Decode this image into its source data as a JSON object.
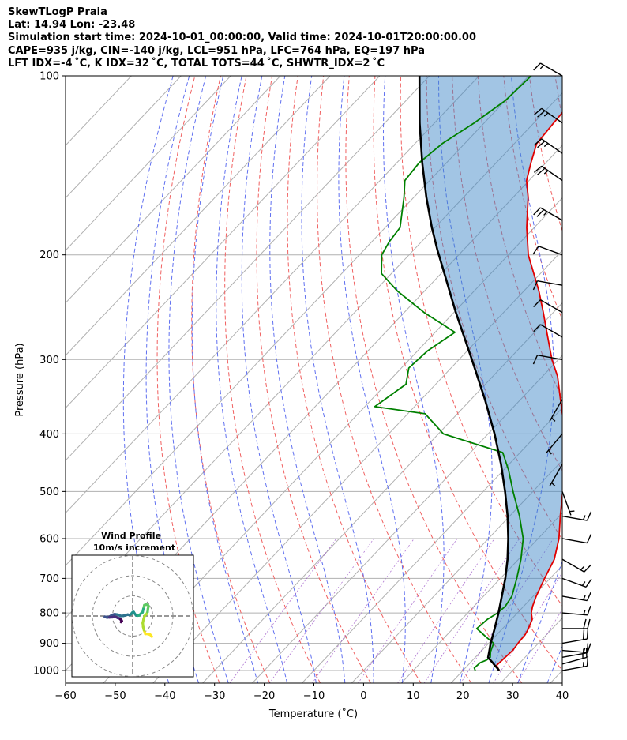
{
  "header": {
    "line1": "SkewTLogP Praia",
    "line2": "Lat: 14.94   Lon: -23.48",
    "line3": "Simulation start time: 2024-10-01_00:00:00, Valid time: 2024-10-01T20:00:00.00",
    "line4": "CAPE=935 j/kg, CIN=-140 j/kg, LCL=951 hPa, LFC=764 hPa, EQ=197 hPa",
    "line5": "LFT IDX=-4 ˚C, K IDX=32 ˚C, TOTAL TOTS=44 ˚C, SHWTR_IDX=2 ˚C"
  },
  "chart_data": {
    "type": "skewt",
    "title": "SkewTLogP Praia",
    "xlabel": "Temperature (˚C)",
    "ylabel": "Pressure (hPa)",
    "xlim": [
      -60,
      40
    ],
    "ylim": [
      1050,
      100
    ],
    "x_ticks": [
      -60,
      -50,
      -40,
      -30,
      -20,
      -10,
      0,
      10,
      20,
      30,
      40
    ],
    "x_tick_labels": [
      "−60",
      "−50",
      "−40",
      "−30",
      "−20",
      "−10",
      "0",
      "10",
      "20",
      "30",
      "40"
    ],
    "p_ticks": [
      1000,
      900,
      800,
      700,
      600,
      500,
      400,
      300,
      200,
      100
    ],
    "p_tick_labels": [
      "1000",
      "900",
      "800",
      "700",
      "600",
      "500",
      "400",
      "300",
      "200",
      "100"
    ],
    "series": [
      {
        "name": "temperature",
        "color": "#e00000",
        "points": [
          [
            1000,
            27.3
          ],
          [
            980,
            25.8
          ],
          [
            950,
            26.0
          ],
          [
            925,
            26.2
          ],
          [
            900,
            25.9
          ],
          [
            870,
            25.7
          ],
          [
            850,
            25.2
          ],
          [
            820,
            24.2
          ],
          [
            800,
            22.8
          ],
          [
            780,
            21.8
          ],
          [
            750,
            20.6
          ],
          [
            700,
            18.9
          ],
          [
            650,
            17.2
          ],
          [
            600,
            14.2
          ],
          [
            550,
            10.2
          ],
          [
            500,
            6.0
          ],
          [
            450,
            1.5
          ],
          [
            400,
            -4.5
          ],
          [
            350,
            -12.0
          ],
          [
            320,
            -17.0
          ],
          [
            300,
            -21.3
          ],
          [
            270,
            -27.5
          ],
          [
            250,
            -32.0
          ],
          [
            230,
            -37.0
          ],
          [
            200,
            -46.0
          ],
          [
            180,
            -51.5
          ],
          [
            160,
            -57.0
          ],
          [
            150,
            -60.5
          ],
          [
            140,
            -63.0
          ],
          [
            130,
            -65.5
          ],
          [
            120,
            -66.0
          ],
          [
            110,
            -66.5
          ],
          [
            100,
            -68.0
          ]
        ]
      },
      {
        "name": "dewpoint",
        "color": "#008000",
        "points": [
          [
            1000,
            22.5
          ],
          [
            990,
            21.8
          ],
          [
            970,
            22.0
          ],
          [
            960,
            22.8
          ],
          [
            950,
            23.0
          ],
          [
            930,
            22.0
          ],
          [
            900,
            21.0
          ],
          [
            880,
            18.5
          ],
          [
            850,
            14.8
          ],
          [
            820,
            15.2
          ],
          [
            800,
            16.0
          ],
          [
            780,
            16.3
          ],
          [
            750,
            15.7
          ],
          [
            700,
            13.3
          ],
          [
            650,
            10.5
          ],
          [
            600,
            7.0
          ],
          [
            550,
            2.0
          ],
          [
            500,
            -4.0
          ],
          [
            460,
            -9.0
          ],
          [
            430,
            -13.5
          ],
          [
            400,
            -29.0
          ],
          [
            370,
            -36.5
          ],
          [
            360,
            -48.0
          ],
          [
            330,
            -46.0
          ],
          [
            310,
            -48.5
          ],
          [
            290,
            -48.0
          ],
          [
            270,
            -46.0
          ],
          [
            250,
            -56.0
          ],
          [
            230,
            -65.5
          ],
          [
            215,
            -72.0
          ],
          [
            200,
            -75.5
          ],
          [
            190,
            -76.5
          ],
          [
            180,
            -77.0
          ],
          [
            160,
            -82.0
          ],
          [
            150,
            -85.0
          ],
          [
            140,
            -85.5
          ],
          [
            130,
            -84.5
          ],
          [
            120,
            -82.0
          ],
          [
            110,
            -80.0
          ],
          [
            100,
            -79.5
          ]
        ]
      },
      {
        "name": "parcel",
        "color": "#000000",
        "points": [
          [
            1000,
            27.3
          ],
          [
            990,
            26.4
          ],
          [
            980,
            25.4
          ],
          [
            970,
            24.5
          ],
          [
            951,
            22.6
          ],
          [
            925,
            21.5
          ],
          [
            900,
            20.4
          ],
          [
            850,
            18.4
          ],
          [
            800,
            16.2
          ],
          [
            764,
            14.4
          ],
          [
            700,
            11.0
          ],
          [
            650,
            7.8
          ],
          [
            600,
            4.0
          ],
          [
            550,
            -0.4
          ],
          [
            500,
            -5.6
          ],
          [
            450,
            -11.6
          ],
          [
            400,
            -18.7
          ],
          [
            350,
            -27.2
          ],
          [
            300,
            -37.4
          ],
          [
            250,
            -49.6
          ],
          [
            200,
            -64.0
          ],
          [
            197,
            -65.0
          ],
          [
            180,
            -70.6
          ],
          [
            160,
            -77.5
          ],
          [
            140,
            -84.9
          ],
          [
            120,
            -93.0
          ],
          [
            100,
            -102.0
          ]
        ]
      }
    ],
    "wind_barbs": [
      {
        "p": 1000,
        "speed_kt": 15,
        "dir_deg": 80
      },
      {
        "p": 975,
        "speed_kt": 15,
        "dir_deg": 75
      },
      {
        "p": 950,
        "speed_kt": 15,
        "dir_deg": 80
      },
      {
        "p": 925,
        "speed_kt": 15,
        "dir_deg": 95
      },
      {
        "p": 900,
        "speed_kt": 20,
        "dir_deg": 80
      },
      {
        "p": 850,
        "speed_kt": 20,
        "dir_deg": 90
      },
      {
        "p": 800,
        "speed_kt": 15,
        "dir_deg": 95
      },
      {
        "p": 750,
        "speed_kt": 15,
        "dir_deg": 100
      },
      {
        "p": 700,
        "speed_kt": 15,
        "dir_deg": 110
      },
      {
        "p": 650,
        "speed_kt": 15,
        "dir_deg": 120
      },
      {
        "p": 600,
        "speed_kt": 10,
        "dir_deg": 100
      },
      {
        "p": 550,
        "speed_kt": 15,
        "dir_deg": 100
      },
      {
        "p": 500,
        "speed_kt": 5,
        "dir_deg": 160
      },
      {
        "p": 450,
        "speed_kt": 5,
        "dir_deg": 210
      },
      {
        "p": 400,
        "speed_kt": 5,
        "dir_deg": 220
      },
      {
        "p": 350,
        "speed_kt": 5,
        "dir_deg": 210
      },
      {
        "p": 300,
        "speed_kt": 10,
        "dir_deg": 280
      },
      {
        "p": 275,
        "speed_kt": 10,
        "dir_deg": 300
      },
      {
        "p": 250,
        "speed_kt": 10,
        "dir_deg": 300
      },
      {
        "p": 225,
        "speed_kt": 10,
        "dir_deg": 280
      },
      {
        "p": 200,
        "speed_kt": 10,
        "dir_deg": 290
      },
      {
        "p": 175,
        "speed_kt": 25,
        "dir_deg": 300
      },
      {
        "p": 150,
        "speed_kt": 25,
        "dir_deg": 305
      },
      {
        "p": 135,
        "speed_kt": 25,
        "dir_deg": 305
      },
      {
        "p": 120,
        "speed_kt": 25,
        "dir_deg": 305
      },
      {
        "p": 100,
        "speed_kt": 15,
        "dir_deg": 300
      }
    ],
    "hodograph": {
      "title": "Wind Profile",
      "subtitle": "10m/s increment",
      "ring_step_ms": 10,
      "rings": 3,
      "points_uv": [
        [
          9.5,
          -10.2
        ],
        [
          8.7,
          -9.3
        ],
        [
          7.4,
          -8.9
        ],
        [
          6.3,
          -8.9
        ],
        [
          5.6,
          -7.0
        ],
        [
          5.2,
          -5.4
        ],
        [
          5.0,
          -3.5
        ],
        [
          5.4,
          -1.6
        ],
        [
          5.9,
          0.0
        ],
        [
          6.8,
          0.9
        ],
        [
          7.4,
          2.0
        ],
        [
          7.6,
          3.6
        ],
        [
          7.9,
          4.9
        ],
        [
          7.6,
          5.4
        ],
        [
          6.8,
          5.7
        ],
        [
          5.8,
          5.4
        ],
        [
          5.3,
          3.5
        ],
        [
          4.9,
          1.8
        ],
        [
          4.3,
          1.4
        ],
        [
          3.8,
          0.9
        ],
        [
          3.1,
          0.3
        ],
        [
          2.3,
          0.2
        ],
        [
          1.7,
          0.3
        ],
        [
          1.0,
          1.2
        ],
        [
          0.5,
          2.0
        ],
        [
          0.0,
          1.9
        ],
        [
          -0.5,
          1.3
        ],
        [
          -1.0,
          0.8
        ],
        [
          -1.7,
          0.5
        ],
        [
          -2.5,
          0.7
        ],
        [
          -3.6,
          0.3
        ],
        [
          -4.5,
          0.1
        ],
        [
          -5.9,
          0.0
        ],
        [
          -7.4,
          0.7
        ],
        [
          -8.9,
          0.9
        ],
        [
          -10.3,
          0.5
        ],
        [
          -11.4,
          -0.3
        ],
        [
          -12.7,
          -0.8
        ],
        [
          -13.8,
          -0.4
        ],
        [
          -12.8,
          -0.5
        ],
        [
          -11.6,
          -0.7
        ],
        [
          -10.1,
          -0.6
        ],
        [
          -9.2,
          -0.4
        ],
        [
          -8.4,
          -0.5
        ],
        [
          -7.5,
          -0.9
        ],
        [
          -6.6,
          -1.2
        ],
        [
          -6.1,
          -1.6
        ],
        [
          -5.6,
          -2.1
        ],
        [
          -5.4,
          -2.5
        ],
        [
          -5.8,
          -3.0
        ]
      ]
    }
  }
}
